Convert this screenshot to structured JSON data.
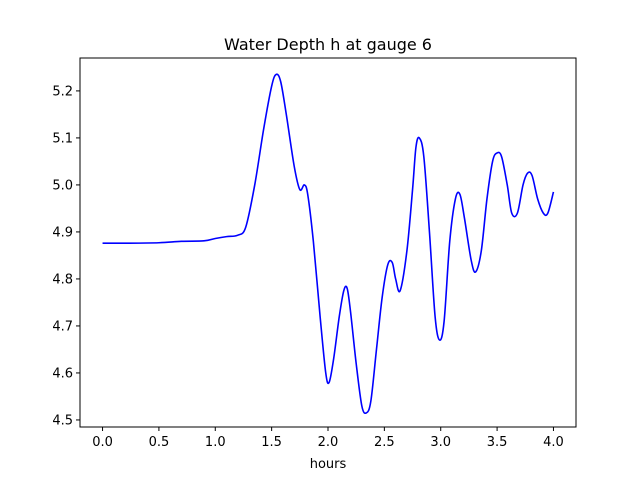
{
  "chart_data": {
    "type": "line",
    "title": "Water Depth h at gauge 6",
    "xlabel": "hours",
    "ylabel": "",
    "xlim": [
      -0.2,
      4.2
    ],
    "ylim": [
      4.485,
      5.27
    ],
    "x_ticks": [
      0.0,
      0.5,
      1.0,
      1.5,
      2.0,
      2.5,
      3.0,
      3.5,
      4.0
    ],
    "x_tick_labels": [
      "0.0",
      "0.5",
      "1.0",
      "1.5",
      "2.0",
      "2.5",
      "3.0",
      "3.5",
      "4.0"
    ],
    "y_ticks": [
      4.5,
      4.6,
      4.7,
      4.8,
      4.9,
      5.0,
      5.1,
      5.2
    ],
    "y_tick_labels": [
      "4.5",
      "4.6",
      "4.7",
      "4.8",
      "4.9",
      "5.0",
      "5.1",
      "5.2"
    ],
    "grid": false,
    "legend": "none",
    "series": [
      {
        "color": "#0000ff",
        "x": [
          0.0,
          0.2,
          0.5,
          0.7,
          0.9,
          1.0,
          1.1,
          1.2,
          1.27,
          1.35,
          1.43,
          1.5,
          1.54,
          1.58,
          1.63,
          1.7,
          1.75,
          1.79,
          1.82,
          1.87,
          1.93,
          1.98,
          2.01,
          2.05,
          2.1,
          2.14,
          2.17,
          2.2,
          2.25,
          2.3,
          2.34,
          2.38,
          2.43,
          2.48,
          2.53,
          2.57,
          2.6,
          2.64,
          2.7,
          2.75,
          2.78,
          2.81,
          2.85,
          2.9,
          2.95,
          2.99,
          3.03,
          3.08,
          3.13,
          3.17,
          3.21,
          3.27,
          3.31,
          3.36,
          3.41,
          3.46,
          3.5,
          3.54,
          3.59,
          3.63,
          3.68,
          3.73,
          3.77,
          3.81,
          3.86,
          3.91,
          3.95,
          4.0
        ],
        "y": [
          4.876,
          4.876,
          4.877,
          4.88,
          4.881,
          4.886,
          4.89,
          4.893,
          4.91,
          5.0,
          5.12,
          5.21,
          5.235,
          5.22,
          5.15,
          5.04,
          4.99,
          5.0,
          4.98,
          4.88,
          4.72,
          4.6,
          4.58,
          4.63,
          4.72,
          4.775,
          4.78,
          4.73,
          4.62,
          4.53,
          4.515,
          4.54,
          4.65,
          4.76,
          4.83,
          4.835,
          4.8,
          4.775,
          4.86,
          4.99,
          5.08,
          5.1,
          5.06,
          4.9,
          4.72,
          4.67,
          4.71,
          4.88,
          4.97,
          4.98,
          4.93,
          4.84,
          4.815,
          4.86,
          4.97,
          5.05,
          5.068,
          5.06,
          5.0,
          4.94,
          4.94,
          5.0,
          5.025,
          5.02,
          4.97,
          4.94,
          4.94,
          4.985
        ]
      }
    ]
  }
}
